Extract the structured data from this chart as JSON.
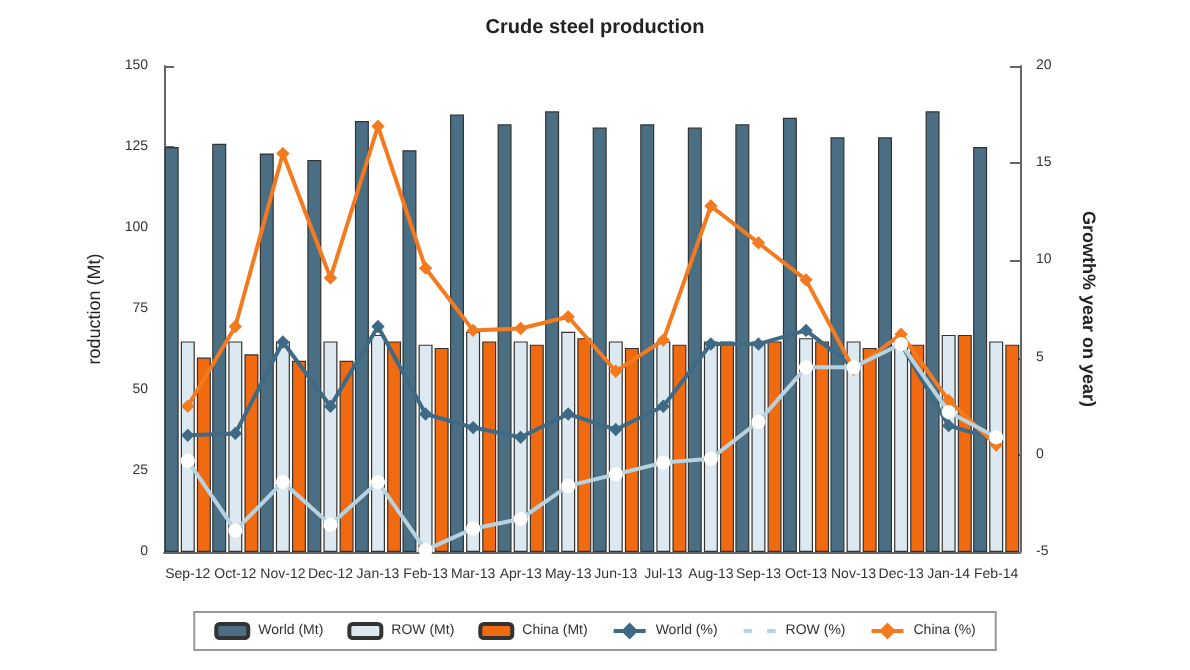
{
  "chart_data": {
    "type": "bar",
    "title": "Crude steel production",
    "ylabel": "roduction (Mt)",
    "y2label": "Growth% year on year)",
    "categories": [
      "Sep-12",
      "Oct-12",
      "Nov-12",
      "Dec-12",
      "Jan-13",
      "Feb-13",
      "Mar-13",
      "Apr-13",
      "May-13",
      "Jun-13",
      "Jul-13",
      "Aug-13",
      "Sep-13",
      "Oct-13",
      "Nov-13",
      "Dec-13",
      "Jan-14",
      "Feb-14"
    ],
    "series": [
      {
        "name": "World (Mt)",
        "color": "#4a6f85",
        "values": [
          125,
          126,
          123,
          121,
          133,
          124,
          135,
          132,
          136,
          131,
          132,
          131,
          132,
          134,
          128,
          128,
          136,
          125
        ]
      },
      {
        "name": "ROW (Mt)",
        "color": "#dce9f0",
        "values": [
          65,
          65,
          65,
          65,
          67,
          64,
          68,
          65,
          68,
          65,
          65,
          65,
          65,
          66,
          65,
          65,
          67,
          65
        ]
      },
      {
        "name": "China (Mt)",
        "color": "#f26a10",
        "values": [
          60,
          61,
          59,
          59,
          65,
          63,
          65,
          64,
          66,
          63,
          64,
          65,
          65,
          65,
          63,
          64,
          67,
          64
        ]
      },
      {
        "name": "World (%)",
        "type": "line",
        "axis": "y2",
        "marker": "diamond",
        "color": "#3e6a85",
        "values": [
          1.0,
          1.1,
          5.8,
          2.5,
          6.6,
          2.1,
          1.4,
          0.9,
          2.1,
          1.3,
          2.5,
          5.7,
          5.7,
          6.4,
          4.5,
          5.7,
          1.5,
          0.8
        ]
      },
      {
        "name": "ROW (%)",
        "type": "line",
        "axis": "y2",
        "marker": "circle",
        "color": "#b8d3e0",
        "values": [
          -0.3,
          -3.9,
          -1.4,
          -3.6,
          -1.4,
          -4.9,
          -3.8,
          -3.3,
          -1.6,
          -1.0,
          -0.4,
          -0.2,
          1.7,
          4.5,
          4.5,
          5.7,
          2.2,
          0.9
        ]
      },
      {
        "name": "China (%)",
        "type": "line",
        "axis": "y2",
        "marker": "diamond",
        "color": "#f47a20",
        "values": [
          2.5,
          6.6,
          15.5,
          9.1,
          16.9,
          9.6,
          6.4,
          6.5,
          7.1,
          4.3,
          5.9,
          12.8,
          10.9,
          9.0,
          4.4,
          6.2,
          2.8,
          0.5
        ]
      }
    ],
    "ylim": [
      0,
      150
    ],
    "yticks": [
      0,
      25,
      50,
      75,
      100,
      125,
      150
    ],
    "y2lim": [
      -5,
      20
    ],
    "y2ticks": [
      -5,
      0,
      5,
      10,
      15,
      20
    ],
    "legend": "bottom",
    "grid": false
  }
}
